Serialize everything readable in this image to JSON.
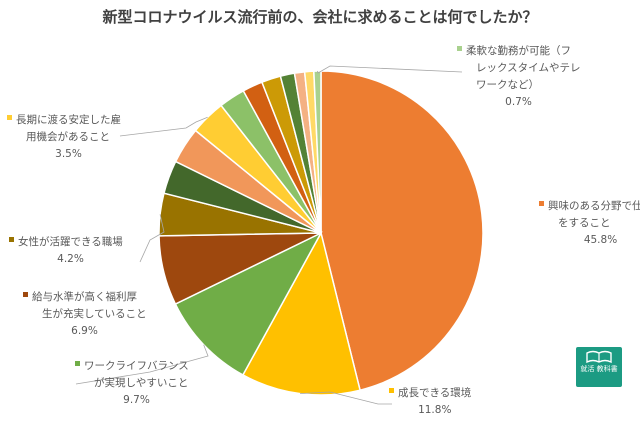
{
  "chart_data": {
    "type": "pie",
    "title": "新型コロナウイルス流行前の、会社に求めることは何でしたか？",
    "series": [
      {
        "label_lines": [
          "興味のある分野で仕事",
          "をすること"
        ],
        "value": 45.8,
        "value_text": "45.8%",
        "color": "#ed7d31"
      },
      {
        "label_lines": [
          "成長できる環境"
        ],
        "value": 11.8,
        "value_text": "11.8%",
        "color": "#ffc000"
      },
      {
        "label_lines": [
          "ワークライフバランス",
          "が実現しやすいこと"
        ],
        "value": 9.7,
        "value_text": "9.7%",
        "color": "#70ad47"
      },
      {
        "label_lines": [
          "給与水準が高く福利厚",
          "生が充実していること"
        ],
        "value": 6.9,
        "value_text": "6.9%",
        "color": "#9e480e"
      },
      {
        "label_lines": [
          "女性が活躍できる職場"
        ],
        "value": 4.2,
        "value_text": "4.2%",
        "color": "#997300"
      },
      {
        "label_lines": [],
        "value": 3.3,
        "color": "#43682b"
      },
      {
        "label_lines": [],
        "value": 3.6,
        "color": "#f1975a"
      },
      {
        "label_lines": [
          "長期に渡る安定した雇",
          "用機会があること"
        ],
        "value": 3.5,
        "value_text": "3.5%",
        "color": "#ffcd33"
      },
      {
        "label_lines": [],
        "value": 2.6,
        "color": "#8cc168"
      },
      {
        "label_lines": [],
        "value": 2.0,
        "color": "#d26012"
      },
      {
        "label_lines": [],
        "value": 1.9,
        "color": "#cc9a06"
      },
      {
        "label_lines": [],
        "value": 1.4,
        "color": "#548235"
      },
      {
        "label_lines": [],
        "value": 1.0,
        "color": "#f4b183"
      },
      {
        "label_lines": [],
        "value": 0.9,
        "color": "#ffd966"
      },
      {
        "label_lines": [
          "柔軟な勤務が可能（フ",
          "レックスタイムやテレ",
          "ワークなど）"
        ],
        "value": 0.7,
        "value_text": "0.7%",
        "color": "#a9d18e"
      }
    ]
  },
  "logo": {
    "text": "就活 教科書"
  }
}
